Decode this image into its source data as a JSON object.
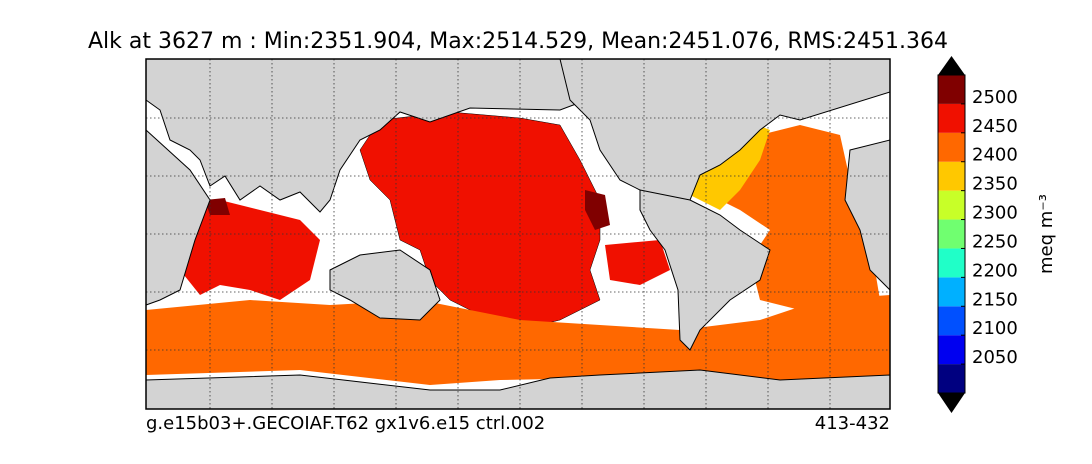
{
  "map": {
    "title": "Alk at 3627 m : Min:2351.904, Max:2514.529, Mean:2451.076, RMS:2451.364",
    "footer_left": "g.e15b03+.GECOIAF.T62 gx1v6.e15 ctrl.002",
    "footer_right": "413-432"
  },
  "colorbar": {
    "label": "meq m⁻³",
    "ylim": [
      2000,
      2550
    ],
    "bounds": [
      2000,
      2050,
      2100,
      2150,
      2200,
      2250,
      2300,
      2350,
      2400,
      2450,
      2500,
      2550
    ],
    "colors": [
      "#000080",
      "#0000f0",
      "#0050ff",
      "#00b0ff",
      "#20ffc8",
      "#70ff70",
      "#c8ff28",
      "#ffc800",
      "#ff6800",
      "#f01000",
      "#800000"
    ],
    "ticks": [
      2050,
      2100,
      2150,
      2200,
      2250,
      2300,
      2350,
      2400,
      2450,
      2500
    ]
  }
}
